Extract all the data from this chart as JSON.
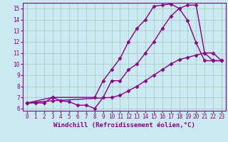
{
  "xlabel": "Windchill (Refroidissement éolien,°C)",
  "bg_color": "#cce8f0",
  "line_color": "#880088",
  "grid_color": "#99ccbb",
  "xlim": [
    -0.5,
    23.5
  ],
  "ylim": [
    5.8,
    15.5
  ],
  "yticks": [
    6,
    7,
    8,
    9,
    10,
    11,
    12,
    13,
    14,
    15
  ],
  "xticks": [
    0,
    1,
    2,
    3,
    4,
    5,
    6,
    7,
    8,
    9,
    10,
    11,
    12,
    13,
    14,
    15,
    16,
    17,
    18,
    19,
    20,
    21,
    22,
    23
  ],
  "line1_x": [
    0,
    1,
    2,
    3,
    4,
    5,
    6,
    7,
    8,
    9,
    10,
    11,
    12,
    13,
    14,
    15,
    16,
    17,
    18,
    19,
    20,
    21,
    22,
    23
  ],
  "line1_y": [
    6.5,
    6.5,
    6.5,
    7.0,
    6.7,
    6.6,
    6.3,
    6.3,
    6.0,
    7.0,
    8.5,
    8.5,
    9.5,
    10.0,
    11.0,
    12.0,
    13.2,
    14.3,
    15.0,
    15.3,
    15.3,
    11.0,
    11.0,
    10.3
  ],
  "line2_x": [
    0,
    3,
    10,
    11,
    12,
    13,
    14,
    15,
    16,
    17,
    18,
    19,
    20,
    21,
    22,
    23
  ],
  "line2_y": [
    6.5,
    6.7,
    7.0,
    7.2,
    7.6,
    8.0,
    8.5,
    9.0,
    9.5,
    10.0,
    10.4,
    10.6,
    10.8,
    11.0,
    10.3,
    10.3
  ],
  "line3_x": [
    0,
    3,
    8,
    9,
    10,
    11,
    12,
    13,
    14,
    15,
    16,
    17,
    18,
    19,
    20,
    21,
    22,
    23
  ],
  "line3_y": [
    6.5,
    7.0,
    7.0,
    8.5,
    9.5,
    10.5,
    12.0,
    13.2,
    14.0,
    15.2,
    15.3,
    15.4,
    15.0,
    13.9,
    11.9,
    10.3,
    10.3,
    10.3
  ],
  "marker": "D",
  "markersize": 2.5,
  "linewidth": 1.0,
  "tick_fontsize": 5.5,
  "label_fontsize": 6.5
}
